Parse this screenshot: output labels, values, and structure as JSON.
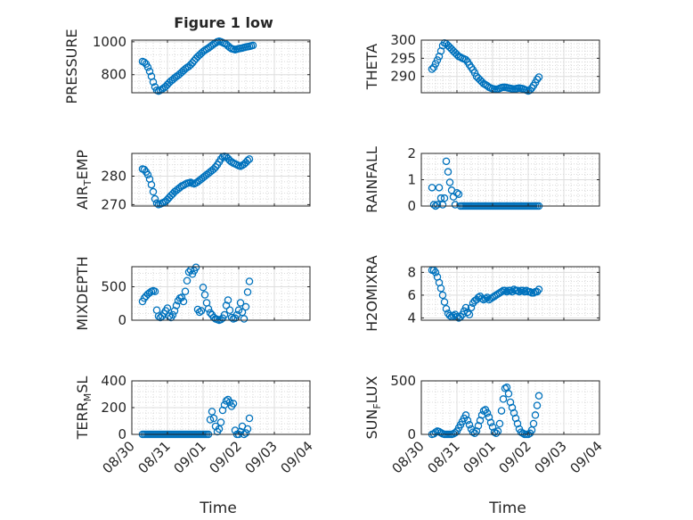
{
  "chart_data": {
    "title": "Figure 1 low",
    "type": "scatter",
    "marker": "open-circle",
    "marker_color": "#0072BD",
    "grid": true,
    "minor_grid": true,
    "xlabel": "Time",
    "x_ticks": [
      "08/30",
      "08/31",
      "09/01",
      "09/02",
      "09/03",
      "09/04"
    ],
    "panels": [
      {
        "ylabel": "PRESSURE",
        "ylim": [
          690,
          1010
        ],
        "y_ticks": [
          800,
          1000
        ],
        "x": [
          0.3,
          0.35,
          0.4,
          0.45,
          0.5,
          0.55,
          0.6,
          0.65,
          0.7,
          0.75,
          0.8,
          0.85,
          0.9,
          0.95,
          1.0,
          1.05,
          1.1,
          1.15,
          1.2,
          1.25,
          1.3,
          1.35,
          1.4,
          1.45,
          1.5,
          1.55,
          1.6,
          1.65,
          1.7,
          1.75,
          1.8,
          1.85,
          1.9,
          1.95,
          2.0,
          2.05,
          2.1,
          2.15,
          2.2,
          2.25,
          2.3,
          2.35,
          2.4,
          2.45,
          2.5,
          2.55,
          2.6,
          2.65,
          2.7,
          2.75,
          2.8,
          2.85,
          2.9,
          2.95,
          3.0,
          3.05,
          3.1,
          3.15,
          3.2,
          3.25,
          3.3,
          3.35,
          3.4
        ],
        "y": [
          880,
          875,
          865,
          845,
          820,
          790,
          755,
          725,
          705,
          700,
          705,
          712,
          720,
          728,
          740,
          752,
          762,
          770,
          780,
          788,
          796,
          805,
          815,
          825,
          835,
          843,
          850,
          860,
          872,
          885,
          898,
          910,
          920,
          930,
          940,
          948,
          955,
          962,
          970,
          978,
          986,
          993,
          1000,
          1003,
          1000,
          995,
          990,
          985,
          975,
          965,
          958,
          955,
          952,
          955,
          958,
          960,
          962,
          965,
          968,
          970,
          972,
          975,
          978
        ]
      },
      {
        "ylabel": "THETA",
        "ylim": [
          285.5,
          300
        ],
        "y_ticks": [
          290,
          295,
          300
        ],
        "x": [
          0.3,
          0.35,
          0.4,
          0.45,
          0.5,
          0.55,
          0.6,
          0.65,
          0.7,
          0.75,
          0.8,
          0.85,
          0.9,
          0.95,
          1.0,
          1.05,
          1.1,
          1.15,
          1.2,
          1.25,
          1.3,
          1.35,
          1.4,
          1.45,
          1.5,
          1.55,
          1.6,
          1.65,
          1.7,
          1.75,
          1.8,
          1.85,
          1.9,
          1.95,
          2.0,
          2.05,
          2.1,
          2.15,
          2.2,
          2.25,
          2.3,
          2.35,
          2.4,
          2.45,
          2.5,
          2.55,
          2.6,
          2.65,
          2.7,
          2.75,
          2.8,
          2.85,
          2.9,
          2.95,
          3.0,
          3.05,
          3.1,
          3.15,
          3.2,
          3.25,
          3.3
        ],
        "y": [
          292,
          292.5,
          293.5,
          294.5,
          295.5,
          297,
          298.5,
          299.2,
          299,
          298.5,
          298,
          297.5,
          297,
          296.5,
          296,
          295.5,
          295.3,
          295,
          294.8,
          294.6,
          294,
          293.2,
          292.5,
          291.8,
          291,
          290,
          289.5,
          289,
          288.5,
          288,
          287.7,
          287.4,
          287,
          286.8,
          286.6,
          286.5,
          286.4,
          286.5,
          286.7,
          286.9,
          287,
          287,
          286.9,
          286.8,
          286.7,
          286.6,
          286.5,
          286.6,
          286.7,
          286.8,
          286.7,
          286.6,
          286.4,
          286.2,
          286,
          286.2,
          286.8,
          287.5,
          288.3,
          289.2,
          289.8
        ]
      },
      {
        "ylabel": "AIR_TEMP",
        "ylim": [
          269.5,
          288
        ],
        "y_ticks": [
          270,
          280
        ],
        "x": [
          0.3,
          0.35,
          0.4,
          0.45,
          0.5,
          0.55,
          0.6,
          0.65,
          0.7,
          0.75,
          0.8,
          0.85,
          0.9,
          0.95,
          1.0,
          1.05,
          1.1,
          1.15,
          1.2,
          1.25,
          1.3,
          1.35,
          1.4,
          1.45,
          1.5,
          1.55,
          1.6,
          1.65,
          1.7,
          1.75,
          1.8,
          1.85,
          1.9,
          1.95,
          2.0,
          2.05,
          2.1,
          2.15,
          2.2,
          2.25,
          2.3,
          2.35,
          2.4,
          2.45,
          2.5,
          2.55,
          2.6,
          2.65,
          2.7,
          2.75,
          2.8,
          2.85,
          2.9,
          2.95,
          3.0,
          3.05,
          3.1,
          3.15,
          3.2,
          3.25,
          3.3
        ],
        "y": [
          282.5,
          282.3,
          281.5,
          280.5,
          279,
          277,
          274.5,
          272,
          270.5,
          270,
          270.2,
          270.5,
          270.8,
          271.2,
          271.8,
          272.5,
          273.2,
          273.8,
          274.5,
          275,
          275.5,
          276,
          276.5,
          276.8,
          277.2,
          277.5,
          277.6,
          277.8,
          277.5,
          277.3,
          277.6,
          278,
          278.5,
          279,
          279.5,
          280,
          280.5,
          281,
          281.5,
          282,
          282.5,
          283.2,
          284,
          285,
          286,
          286.8,
          287,
          286.8,
          286.2,
          285.5,
          285,
          284.6,
          284.3,
          284,
          283.7,
          283.5,
          283.8,
          284.2,
          284.8,
          285.5,
          286
        ]
      },
      {
        "ylabel": "RAINFALL",
        "ylim": [
          0,
          2
        ],
        "y_ticks": [
          0,
          1,
          2
        ],
        "x": [
          0.3,
          0.35,
          0.4,
          0.45,
          0.5,
          0.55,
          0.6,
          0.65,
          0.7,
          0.75,
          0.8,
          0.85,
          0.9,
          0.95,
          1.0,
          1.05,
          1.1,
          1.15,
          1.2,
          1.25,
          1.3,
          1.35,
          1.4,
          1.45,
          1.5,
          1.55,
          1.6,
          1.65,
          1.7,
          1.75,
          1.8,
          1.85,
          1.9,
          1.95,
          2.0,
          2.05,
          2.1,
          2.15,
          2.2,
          2.25,
          2.3,
          2.35,
          2.4,
          2.45,
          2.5,
          2.55,
          2.6,
          2.65,
          2.7,
          2.75,
          2.8,
          2.85,
          2.9,
          2.95,
          3.0,
          3.05,
          3.1,
          3.15,
          3.2,
          3.25,
          3.3
        ],
        "y": [
          0.7,
          0.05,
          0,
          0.05,
          0.7,
          0.3,
          0.05,
          0.3,
          1.7,
          1.3,
          0.9,
          0.6,
          0.35,
          0.05,
          0.5,
          0.45,
          0,
          0,
          0,
          0,
          0,
          0,
          0,
          0,
          0,
          0,
          0,
          0,
          0,
          0,
          0,
          0,
          0,
          0,
          0,
          0,
          0,
          0,
          0,
          0,
          0,
          0,
          0,
          0,
          0,
          0,
          0,
          0,
          0,
          0,
          0,
          0,
          0,
          0,
          0,
          0,
          0,
          0,
          0,
          0,
          0
        ]
      },
      {
        "ylabel": "MIXDEPTH",
        "ylim": [
          0,
          800
        ],
        "y_ticks": [
          0,
          500
        ],
        "x": [
          0.3,
          0.35,
          0.4,
          0.45,
          0.5,
          0.55,
          0.6,
          0.65,
          0.7,
          0.75,
          0.8,
          0.85,
          0.9,
          0.95,
          1.0,
          1.05,
          1.1,
          1.15,
          1.2,
          1.25,
          1.3,
          1.35,
          1.4,
          1.45,
          1.5,
          1.55,
          1.6,
          1.65,
          1.7,
          1.75,
          1.8,
          1.85,
          1.9,
          1.95,
          2.0,
          2.05,
          2.1,
          2.15,
          2.2,
          2.25,
          2.3,
          2.35,
          2.4,
          2.45,
          2.5,
          2.55,
          2.6,
          2.65,
          2.7,
          2.75,
          2.8,
          2.85,
          2.9,
          2.95,
          3.0,
          3.05,
          3.1,
          3.15,
          3.2,
          3.25,
          3.3
        ],
        "y": [
          280,
          330,
          360,
          390,
          410,
          430,
          440,
          430,
          150,
          60,
          40,
          60,
          100,
          140,
          180,
          60,
          40,
          80,
          140,
          220,
          290,
          330,
          340,
          280,
          430,
          590,
          720,
          750,
          690,
          740,
          790,
          160,
          120,
          140,
          490,
          380,
          260,
          170,
          110,
          80,
          40,
          20,
          10,
          0,
          10,
          30,
          80,
          220,
          300,
          150,
          40,
          20,
          30,
          80,
          150,
          260,
          120,
          20,
          200,
          420,
          580
        ]
      },
      {
        "ylabel": "H2OMIXRA",
        "ylim": [
          3.8,
          8.5
        ],
        "y_ticks": [
          4,
          6,
          8
        ],
        "x": [
          0.3,
          0.35,
          0.4,
          0.45,
          0.5,
          0.55,
          0.6,
          0.65,
          0.7,
          0.75,
          0.8,
          0.85,
          0.9,
          0.95,
          1.0,
          1.05,
          1.1,
          1.15,
          1.2,
          1.25,
          1.3,
          1.35,
          1.4,
          1.45,
          1.5,
          1.55,
          1.6,
          1.65,
          1.7,
          1.75,
          1.8,
          1.85,
          1.9,
          1.95,
          2.0,
          2.05,
          2.1,
          2.15,
          2.2,
          2.25,
          2.3,
          2.35,
          2.4,
          2.45,
          2.5,
          2.55,
          2.6,
          2.65,
          2.7,
          2.75,
          2.8,
          2.85,
          2.9,
          2.95,
          3.0,
          3.05,
          3.1,
          3.15,
          3.2,
          3.25,
          3.3
        ],
        "y": [
          8.2,
          8.2,
          8,
          7.6,
          7.1,
          6.6,
          6,
          5.4,
          4.8,
          4.4,
          4.2,
          4.1,
          4.2,
          4.3,
          4.1,
          4,
          4.1,
          4.3,
          4.6,
          4.9,
          4.5,
          4.3,
          4.9,
          5.3,
          5.5,
          5.6,
          5.8,
          5.9,
          5.7,
          5.6,
          5.7,
          5.8,
          5.6,
          5.7,
          5.8,
          5.9,
          6,
          6.1,
          6.2,
          6.3,
          6.4,
          6.4,
          6.3,
          6.4,
          6.4,
          6.3,
          6.5,
          6.4,
          6.4,
          6.3,
          6.4,
          6.4,
          6.3,
          6.4,
          6.3,
          6.3,
          6.2,
          6.2,
          6.3,
          6.3,
          6.5
        ]
      },
      {
        "ylabel": "TERR_MSL",
        "ylim": [
          0,
          400
        ],
        "y_ticks": [
          0,
          200,
          400
        ],
        "x": [
          0.3,
          0.35,
          0.4,
          0.45,
          0.5,
          0.55,
          0.6,
          0.65,
          0.7,
          0.75,
          0.8,
          0.85,
          0.9,
          0.95,
          1.0,
          1.05,
          1.1,
          1.15,
          1.2,
          1.25,
          1.3,
          1.35,
          1.4,
          1.45,
          1.5,
          1.55,
          1.6,
          1.65,
          1.7,
          1.75,
          1.8,
          1.85,
          1.9,
          1.95,
          2.0,
          2.05,
          2.1,
          2.15,
          2.2,
          2.25,
          2.3,
          2.35,
          2.4,
          2.45,
          2.5,
          2.55,
          2.6,
          2.65,
          2.7,
          2.75,
          2.8,
          2.85,
          2.9,
          2.95,
          3.0,
          3.05,
          3.1,
          3.15,
          3.2,
          3.25,
          3.3
        ],
        "y": [
          0,
          0,
          0,
          0,
          0,
          0,
          0,
          0,
          0,
          0,
          0,
          0,
          0,
          0,
          0,
          0,
          0,
          0,
          0,
          0,
          0,
          0,
          0,
          0,
          0,
          0,
          0,
          0,
          0,
          0,
          0,
          0,
          0,
          0,
          0,
          0,
          0,
          0,
          110,
          170,
          120,
          60,
          20,
          40,
          90,
          180,
          220,
          250,
          260,
          240,
          210,
          230,
          30,
          0,
          0,
          20,
          60,
          0,
          10,
          40,
          120
        ]
      },
      {
        "ylabel": "SUN_FLUX",
        "ylim": [
          0,
          500
        ],
        "y_ticks": [
          0,
          500
        ],
        "x": [
          0.3,
          0.35,
          0.4,
          0.45,
          0.5,
          0.55,
          0.6,
          0.65,
          0.7,
          0.75,
          0.8,
          0.85,
          0.9,
          0.95,
          1.0,
          1.05,
          1.1,
          1.15,
          1.2,
          1.25,
          1.3,
          1.35,
          1.4,
          1.45,
          1.5,
          1.55,
          1.6,
          1.65,
          1.7,
          1.75,
          1.8,
          1.85,
          1.9,
          1.95,
          2.0,
          2.05,
          2.1,
          2.15,
          2.2,
          2.25,
          2.3,
          2.35,
          2.4,
          2.45,
          2.5,
          2.55,
          2.6,
          2.65,
          2.7,
          2.75,
          2.8,
          2.85,
          2.9,
          2.95,
          3.0,
          3.05,
          3.1,
          3.15,
          3.2,
          3.25,
          3.3
        ],
        "y": [
          0,
          5,
          20,
          30,
          25,
          15,
          5,
          0,
          0,
          0,
          0,
          0,
          5,
          15,
          30,
          60,
          90,
          120,
          150,
          180,
          130,
          90,
          50,
          20,
          10,
          30,
          80,
          130,
          180,
          220,
          230,
          200,
          160,
          110,
          70,
          20,
          10,
          30,
          100,
          220,
          330,
          430,
          440,
          380,
          300,
          250,
          200,
          150,
          100,
          50,
          20,
          10,
          0,
          0,
          0,
          10,
          40,
          100,
          180,
          270,
          360
        ]
      }
    ]
  }
}
